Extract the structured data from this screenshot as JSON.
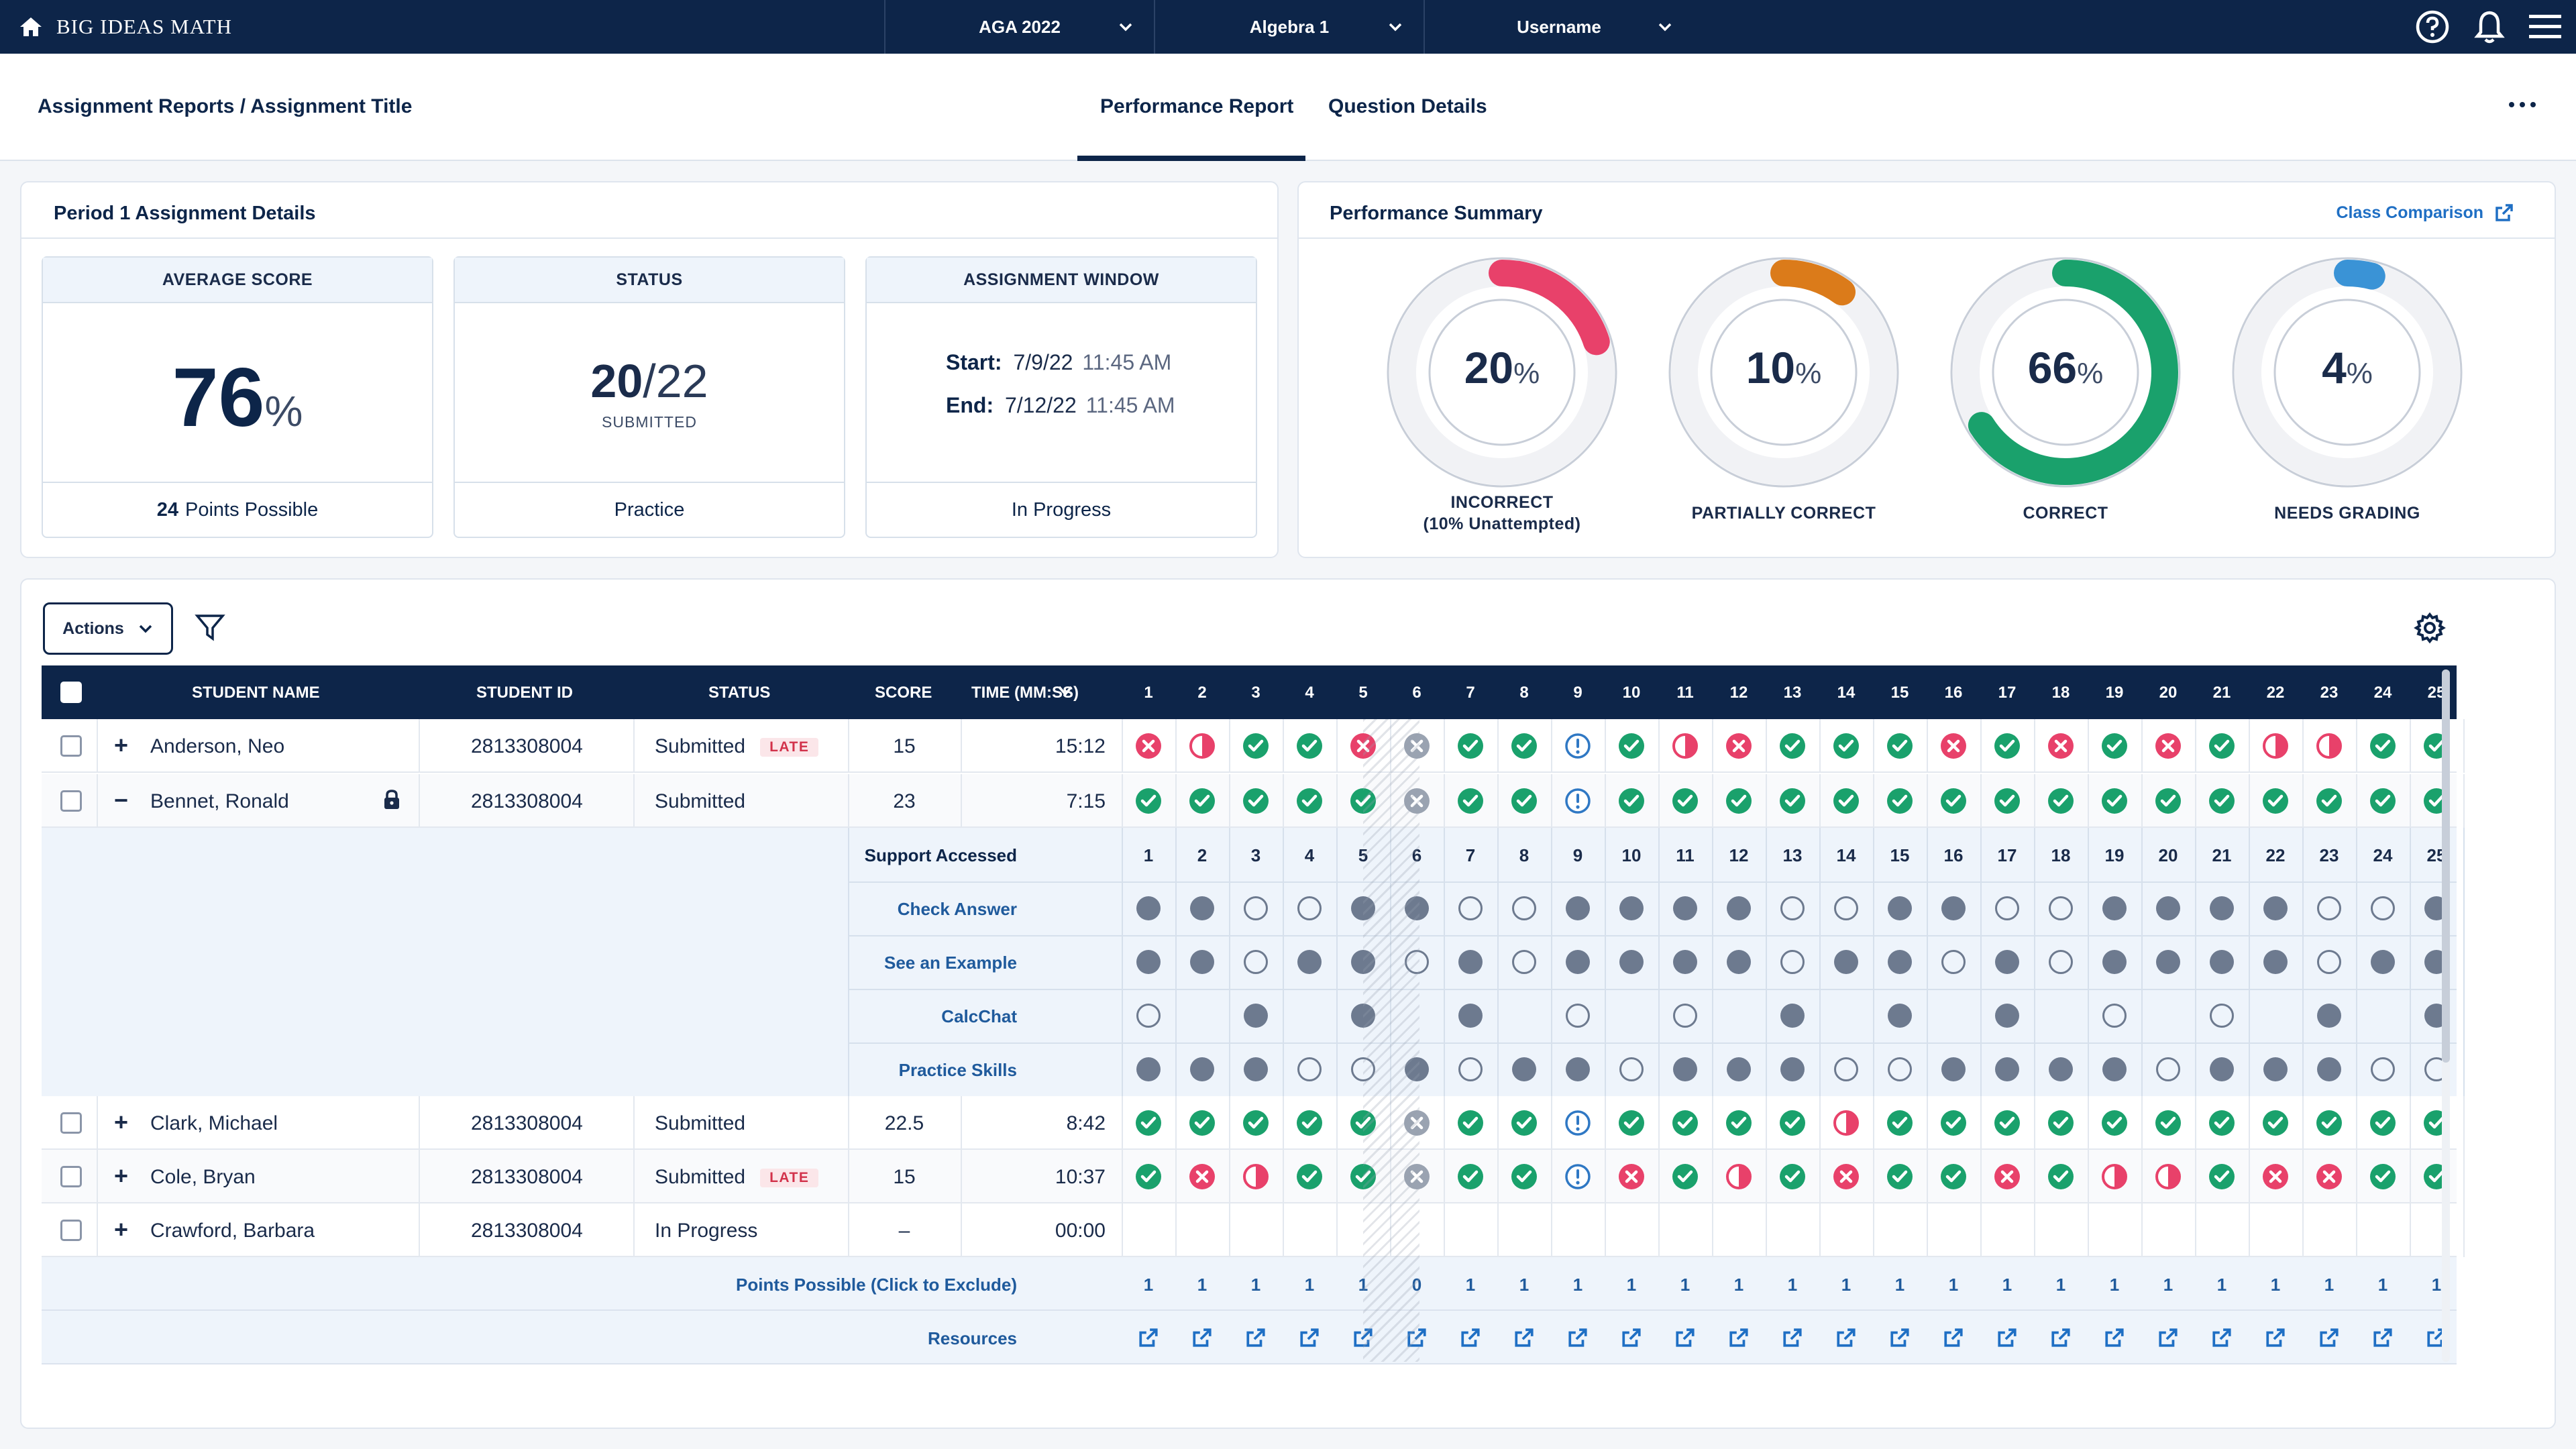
{
  "navbar": {
    "brand": "BIG IDEAS MATH",
    "drop1": "AGA 2022",
    "drop2": "Algebra 1",
    "drop3": "Username"
  },
  "subbar": {
    "breadcrumb": "Assignment Reports / Assignment Title",
    "tab_performance": "Performance Report",
    "tab_questions": "Question Details"
  },
  "details": {
    "title": "Period 1 Assignment Details",
    "avg_head": "AVERAGE SCORE",
    "avg_value": "76",
    "avg_unit": "%",
    "points_num": "24",
    "points_text": "Points Possible",
    "status_head": "STATUS",
    "status_num": "20",
    "status_den": "/22",
    "status_sub": "SUBMITTED",
    "status_foot": "Practice",
    "window_head": "ASSIGNMENT WINDOW",
    "start_label": "Start:",
    "start_date": "7/9/22",
    "start_time": "11:45 AM",
    "end_label": "End:",
    "end_date": "7/12/22",
    "end_time": "11:45 AM",
    "window_foot": "In Progress"
  },
  "summary": {
    "title": "Performance Summary",
    "link": "Class Comparison",
    "donuts": [
      {
        "pct": "20",
        "fraction": 0.2,
        "color": "#e8416a",
        "label1": "INCORRECT",
        "label2": "(10% Unattempted)"
      },
      {
        "pct": "10",
        "fraction": 0.1,
        "color": "#db7b1a",
        "label1": "PARTIALLY CORRECT",
        "label2": ""
      },
      {
        "pct": "66",
        "fraction": 0.66,
        "color": "#1aa16c",
        "label1": "CORRECT",
        "label2": ""
      },
      {
        "pct": "4",
        "fraction": 0.04,
        "color": "#3a93d6",
        "label1": "NEEDS GRADING",
        "label2": ""
      }
    ],
    "unit": "%"
  },
  "toolbar": {
    "actions_label": "Actions"
  },
  "table": {
    "headers": {
      "name": "STUDENT NAME",
      "id": "STUDENT ID",
      "status": "STATUS",
      "score": "SCORE",
      "time": "TIME (MM:SS)"
    },
    "questions": [
      "1",
      "2",
      "3",
      "4",
      "5",
      "6",
      "7",
      "8",
      "9",
      "10",
      "11",
      "12",
      "13",
      "14",
      "15",
      "16",
      "17",
      "18",
      "19",
      "20",
      "21",
      "22",
      "23",
      "24",
      "25"
    ],
    "rows": [
      {
        "expand": "+",
        "name": "Anderson, Neo",
        "id": "2813308004",
        "status": "Submitted",
        "late": "LATE",
        "score": "15",
        "time": "15:12",
        "locked": false,
        "marks": [
          "x",
          "p",
          "c",
          "c",
          "x",
          "s",
          "c",
          "c",
          "n",
          "c",
          "p",
          "x",
          "c",
          "c",
          "c",
          "x",
          "c",
          "x",
          "c",
          "x",
          "c",
          "p",
          "p",
          "c",
          "c"
        ]
      },
      {
        "expand": "−",
        "name": "Bennet, Ronald",
        "id": "2813308004",
        "status": "Submitted",
        "late": "",
        "score": "23",
        "time": "7:15",
        "locked": true,
        "marks": [
          "c",
          "c",
          "c",
          "c",
          "c",
          "s",
          "c",
          "c",
          "n",
          "c",
          "c",
          "c",
          "c",
          "c",
          "c",
          "c",
          "c",
          "c",
          "c",
          "c",
          "c",
          "c",
          "c",
          "c",
          "c"
        ]
      },
      {
        "expand": "+",
        "name": "Clark, Michael",
        "id": "2813308004",
        "status": "Submitted",
        "late": "",
        "score": "22.5",
        "time": "8:42",
        "locked": false,
        "marks": [
          "c",
          "c",
          "c",
          "c",
          "c",
          "s",
          "c",
          "c",
          "n",
          "c",
          "c",
          "c",
          "c",
          "p",
          "c",
          "c",
          "c",
          "c",
          "c",
          "c",
          "c",
          "c",
          "c",
          "c",
          "c"
        ]
      },
      {
        "expand": "+",
        "name": "Cole, Bryan",
        "id": "2813308004",
        "status": "Submitted",
        "late": "LATE",
        "score": "15",
        "time": "10:37",
        "locked": false,
        "marks": [
          "c",
          "x",
          "p",
          "c",
          "c",
          "s",
          "c",
          "c",
          "n",
          "x",
          "c",
          "p",
          "c",
          "x",
          "c",
          "c",
          "x",
          "c",
          "p",
          "p",
          "c",
          "x",
          "x",
          "c",
          "c"
        ]
      },
      {
        "expand": "+",
        "name": "Crawford, Barbara",
        "id": "2813308004",
        "status": "In Progress",
        "late": "",
        "score": "–",
        "time": "00:00",
        "locked": false,
        "marks": [
          "",
          "",
          "",
          "",
          "",
          "",
          "",
          "",
          "",
          "",
          "",
          "",
          "",
          "",
          "",
          "",
          "",
          "",
          "",
          "",
          "",
          "",
          "",
          "",
          ""
        ]
      }
    ],
    "support": {
      "title": "Support Accessed",
      "rows": [
        {
          "label": "Check Answer",
          "marks": [
            "f",
            "f",
            "o",
            "o",
            "f",
            "sf",
            "o",
            "o",
            "f",
            "f",
            "f",
            "f",
            "o",
            "o",
            "f",
            "f",
            "o",
            "o",
            "f",
            "f",
            "f",
            "f",
            "o",
            "o",
            "f"
          ]
        },
        {
          "label": "See an Example",
          "marks": [
            "f",
            "f",
            "o",
            "f",
            "f",
            "so",
            "f",
            "o",
            "f",
            "f",
            "f",
            "f",
            "o",
            "f",
            "f",
            "o",
            "f",
            "o",
            "f",
            "f",
            "f",
            "f",
            "o",
            "f",
            "f"
          ]
        },
        {
          "label": "CalcChat",
          "marks": [
            "o",
            "",
            "f",
            "",
            "f",
            "",
            "f",
            "",
            "o",
            "",
            "o",
            "",
            "f",
            "",
            "f",
            "",
            "f",
            "",
            "o",
            "",
            "o",
            "",
            "f",
            "",
            "f"
          ]
        },
        {
          "label": "Practice Skills",
          "marks": [
            "f",
            "f",
            "f",
            "o",
            "o",
            "sf",
            "o",
            "f",
            "f",
            "o",
            "f",
            "f",
            "f",
            "o",
            "o",
            "f",
            "f",
            "f",
            "f",
            "o",
            "f",
            "f",
            "f",
            "o",
            "o"
          ]
        }
      ]
    },
    "points_label": "Points Possible (Click to Exclude)",
    "points": [
      "1",
      "1",
      "1",
      "1",
      "1",
      "0",
      "1",
      "1",
      "1",
      "1",
      "1",
      "1",
      "1",
      "1",
      "1",
      "1",
      "1",
      "1",
      "1",
      "1",
      "1",
      "1",
      "1",
      "1",
      "1"
    ],
    "resources_label": "Resources"
  },
  "colors": {
    "navy": "#0d2549",
    "correct": "#1aa16c",
    "incorrect": "#e8416a",
    "partial": "#e8416a",
    "needs_grading": "#2f78c4",
    "skipped": "#9aa3b1",
    "support_filled": "#6d7a8f"
  }
}
